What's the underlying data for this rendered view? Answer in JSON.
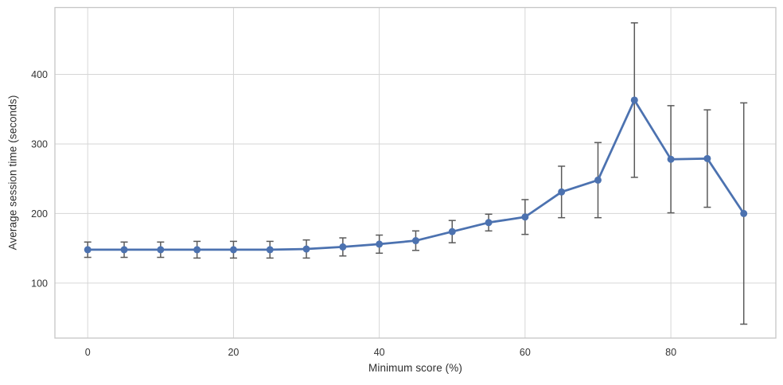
{
  "figure": {
    "background": "#ffffff"
  },
  "chart_data": {
    "type": "line",
    "title": "",
    "xlabel": "Minimum score (%)",
    "ylabel": "Average session time (seconds)",
    "x": [
      0,
      5,
      10,
      15,
      20,
      25,
      30,
      35,
      40,
      45,
      50,
      55,
      60,
      65,
      70,
      75,
      80,
      85,
      90
    ],
    "series": [
      {
        "name": "Average session time",
        "values": [
          148,
          148,
          148,
          148,
          148,
          148,
          149,
          152,
          156,
          161,
          174,
          187,
          195,
          231,
          248,
          363,
          278,
          279,
          200
        ],
        "yerr": [
          11,
          11,
          11,
          12,
          12,
          12,
          13,
          13,
          13,
          14,
          16,
          12,
          25,
          37,
          54,
          111,
          77,
          70,
          159
        ]
      }
    ],
    "xticks": [
      0,
      20,
      40,
      60,
      80
    ],
    "yticks": [
      100,
      200,
      300,
      400
    ],
    "xlim": [
      -4.5,
      94.4
    ],
    "ylim": [
      21,
      496
    ],
    "grid": true,
    "legend": false,
    "colors": {
      "line": "#4c72b0",
      "marker": "#4c72b0",
      "error_bar": "#5a5a5a",
      "grid_line": "#d6d6d6",
      "spine": "#c6c6c6",
      "tick_text": "#333333"
    }
  }
}
